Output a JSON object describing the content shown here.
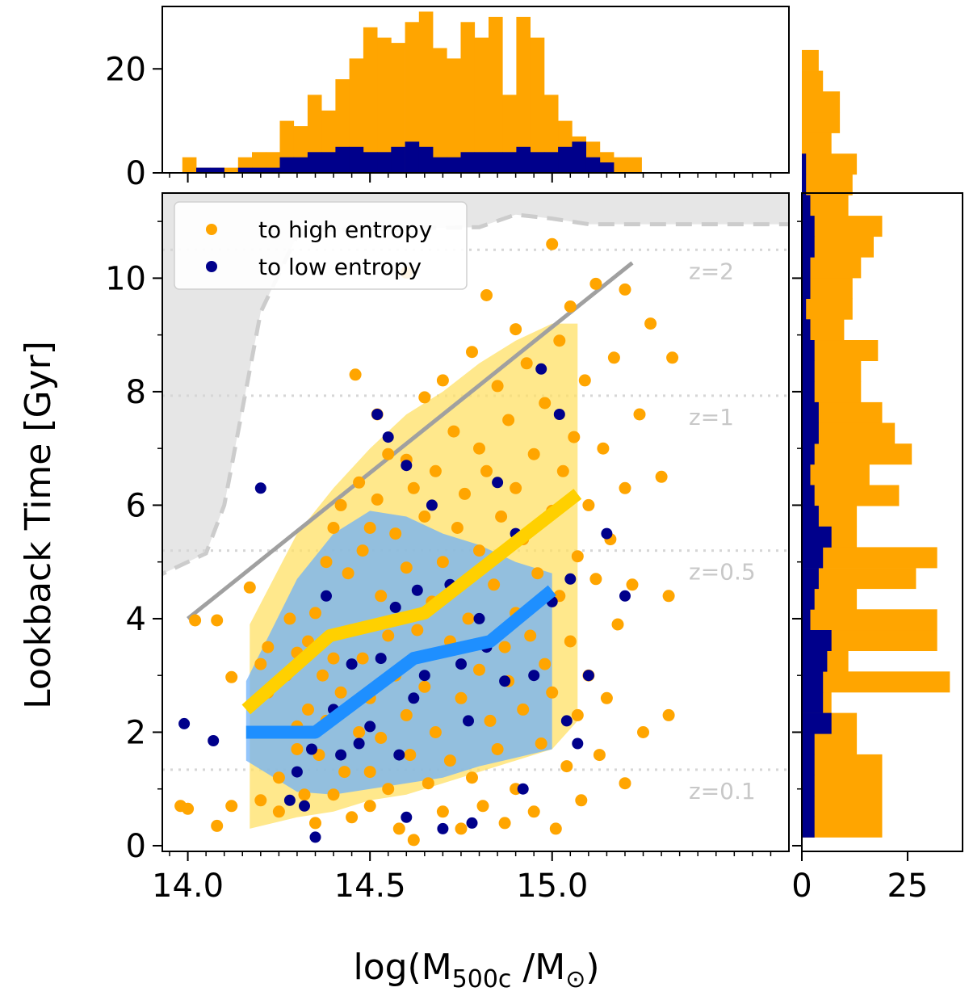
{
  "chart_data": [
    {
      "id": "main",
      "type": "scatter",
      "xlabel": "log(M",
      "xlabel_sub": "500c",
      "xlabel_tail": " /M",
      "xlabel_sun": "⊙",
      "xlabel_close": ")",
      "ylabel": "Lookback Time [Gyr]",
      "xlim": [
        13.93,
        15.65
      ],
      "ylim": [
        -0.1,
        11.5
      ],
      "xticks": [
        {
          "value": 14.0,
          "label": "14.0"
        },
        {
          "value": 14.5,
          "label": "14.5"
        },
        {
          "value": 15.0,
          "label": "15.0"
        }
      ],
      "yticks": [
        {
          "value": 0,
          "label": "0"
        },
        {
          "value": 2,
          "label": "2"
        },
        {
          "value": 4,
          "label": "4"
        },
        {
          "value": 6,
          "label": "6"
        },
        {
          "value": 8,
          "label": "8"
        },
        {
          "value": 10,
          "label": "10"
        }
      ],
      "legend": {
        "position": "top-left",
        "entries": [
          {
            "label": "to high entropy",
            "color": "#FFA500"
          },
          {
            "label": "to low entropy",
            "color": "#00008B"
          }
        ]
      },
      "redshift_lines": [
        {
          "label": "z=2",
          "y": 10.5
        },
        {
          "label": "z=1",
          "y": 7.93
        },
        {
          "label": "z=0.5",
          "y": 5.2
        },
        {
          "label": "z=0.1",
          "y": 1.34
        }
      ],
      "gray_line": {
        "x": [
          14.0,
          15.22
        ],
        "y": [
          4.0,
          10.27
        ]
      },
      "dashed_boundary": {
        "x": [
          13.9,
          14.05,
          14.1,
          14.2,
          14.3,
          14.35,
          14.8,
          14.9,
          15.0,
          15.1,
          15.3,
          15.65
        ],
        "y": [
          4.7,
          5.15,
          6.0,
          9.4,
          10.75,
          10.85,
          10.9,
          11.12,
          11.05,
          10.95,
          10.95,
          10.95
        ]
      },
      "yellow_band": {
        "x": [
          14.17,
          14.3,
          14.4,
          14.5,
          14.6,
          14.7,
          14.8,
          14.9,
          15.0,
          15.07
        ],
        "upper": [
          3.9,
          5.5,
          6.3,
          7.0,
          7.6,
          8.0,
          8.5,
          8.9,
          9.2,
          9.2
        ],
        "lower": [
          0.3,
          0.5,
          0.6,
          0.8,
          0.9,
          1.1,
          1.3,
          1.5,
          1.7,
          2.2
        ]
      },
      "blue_band": {
        "x": [
          14.16,
          14.3,
          14.4,
          14.5,
          14.6,
          14.7,
          14.8,
          14.9,
          15.0
        ],
        "upper": [
          2.9,
          4.7,
          5.5,
          5.9,
          5.8,
          5.5,
          5.3,
          5.0,
          4.8
        ],
        "lower": [
          1.5,
          0.95,
          0.9,
          1.0,
          1.1,
          1.2,
          1.4,
          1.55,
          1.7
        ]
      },
      "median_high": {
        "x": [
          14.16,
          14.39,
          14.65,
          14.89,
          15.07
        ],
        "y": [
          2.4,
          3.7,
          4.1,
          5.3,
          6.2
        ]
      },
      "median_low": {
        "x": [
          14.16,
          14.35,
          14.62,
          14.83,
          15.0
        ],
        "y": [
          2.0,
          2.0,
          3.3,
          3.6,
          4.5
        ]
      },
      "high_entropy_points": [
        [
          13.98,
          0.7
        ],
        [
          14.0,
          0.65
        ],
        [
          14.02,
          3.97
        ],
        [
          14.08,
          0.35
        ],
        [
          14.08,
          3.97
        ],
        [
          14.12,
          2.97
        ],
        [
          14.12,
          0.7
        ],
        [
          14.17,
          4.55
        ],
        [
          14.2,
          0.8
        ],
        [
          14.2,
          3.2
        ],
        [
          14.22,
          3.5
        ],
        [
          14.22,
          2.7
        ],
        [
          14.25,
          0.6
        ],
        [
          14.25,
          1.2
        ],
        [
          14.27,
          3.0
        ],
        [
          14.28,
          4.0
        ],
        [
          14.3,
          3.4
        ],
        [
          14.3,
          2.1
        ],
        [
          14.3,
          1.7
        ],
        [
          14.32,
          0.9
        ],
        [
          14.33,
          3.6
        ],
        [
          14.33,
          2.4
        ],
        [
          14.35,
          4.1
        ],
        [
          14.35,
          0.4
        ],
        [
          14.36,
          1.6
        ],
        [
          14.37,
          3.0
        ],
        [
          14.38,
          5.0
        ],
        [
          14.38,
          2.2
        ],
        [
          14.4,
          5.6
        ],
        [
          14.4,
          3.3
        ],
        [
          14.4,
          0.9
        ],
        [
          14.42,
          6.0
        ],
        [
          14.42,
          2.7
        ],
        [
          14.43,
          1.3
        ],
        [
          14.44,
          4.8
        ],
        [
          14.45,
          3.8
        ],
        [
          14.45,
          0.5
        ],
        [
          14.46,
          8.3
        ],
        [
          14.47,
          6.4
        ],
        [
          14.47,
          2.0
        ],
        [
          14.48,
          5.2
        ],
        [
          14.48,
          3.3
        ],
        [
          14.5,
          5.6
        ],
        [
          14.5,
          2.6
        ],
        [
          14.5,
          1.3
        ],
        [
          14.5,
          0.7
        ],
        [
          14.52,
          7.6
        ],
        [
          14.52,
          6.1
        ],
        [
          14.53,
          4.4
        ],
        [
          14.53,
          1.9
        ],
        [
          14.55,
          6.9
        ],
        [
          14.55,
          3.7
        ],
        [
          14.55,
          1.0
        ],
        [
          14.57,
          5.5
        ],
        [
          14.57,
          3.0
        ],
        [
          14.58,
          0.3
        ],
        [
          14.6,
          10.1
        ],
        [
          14.6,
          6.8
        ],
        [
          14.6,
          4.9
        ],
        [
          14.6,
          2.3
        ],
        [
          14.61,
          1.6
        ],
        [
          14.62,
          6.3
        ],
        [
          14.62,
          0.1
        ],
        [
          14.63,
          3.8
        ],
        [
          14.65,
          7.9
        ],
        [
          14.65,
          5.8
        ],
        [
          14.65,
          2.8
        ],
        [
          14.66,
          1.1
        ],
        [
          14.67,
          4.3
        ],
        [
          14.68,
          6.6
        ],
        [
          14.68,
          2.0
        ],
        [
          14.7,
          8.2
        ],
        [
          14.7,
          5.0
        ],
        [
          14.7,
          0.6
        ],
        [
          14.72,
          3.6
        ],
        [
          14.72,
          1.5
        ],
        [
          14.73,
          7.3
        ],
        [
          14.74,
          5.6
        ],
        [
          14.75,
          2.6
        ],
        [
          14.75,
          0.3
        ],
        [
          14.76,
          6.2
        ],
        [
          14.77,
          4.0
        ],
        [
          14.78,
          8.7
        ],
        [
          14.78,
          1.2
        ],
        [
          14.8,
          7.0
        ],
        [
          14.8,
          5.2
        ],
        [
          14.8,
          3.1
        ],
        [
          14.81,
          0.7
        ],
        [
          14.82,
          9.7
        ],
        [
          14.82,
          6.6
        ],
        [
          14.83,
          2.2
        ],
        [
          14.84,
          4.6
        ],
        [
          14.85,
          8.1
        ],
        [
          14.85,
          1.7
        ],
        [
          14.86,
          5.8
        ],
        [
          14.87,
          3.5
        ],
        [
          14.87,
          0.4
        ],
        [
          14.88,
          7.5
        ],
        [
          14.88,
          2.9
        ],
        [
          14.9,
          9.1
        ],
        [
          14.9,
          6.3
        ],
        [
          14.9,
          4.1
        ],
        [
          14.9,
          1.0
        ],
        [
          14.92,
          5.4
        ],
        [
          14.92,
          2.4
        ],
        [
          14.93,
          8.5
        ],
        [
          14.94,
          3.7
        ],
        [
          14.95,
          6.9
        ],
        [
          14.95,
          0.6
        ],
        [
          14.96,
          4.8
        ],
        [
          14.97,
          1.8
        ],
        [
          14.98,
          7.8
        ],
        [
          14.98,
          3.2
        ],
        [
          15.0,
          10.6
        ],
        [
          15.0,
          5.9
        ],
        [
          15.0,
          2.7
        ],
        [
          15.01,
          0.3
        ],
        [
          15.02,
          8.9
        ],
        [
          15.02,
          4.4
        ],
        [
          15.03,
          6.6
        ],
        [
          15.04,
          1.4
        ],
        [
          15.05,
          9.5
        ],
        [
          15.05,
          3.6
        ],
        [
          15.06,
          7.2
        ],
        [
          15.07,
          5.1
        ],
        [
          15.07,
          2.3
        ],
        [
          15.08,
          0.8
        ],
        [
          15.09,
          8.2
        ],
        [
          15.1,
          6.0
        ],
        [
          15.1,
          3.0
        ],
        [
          15.12,
          9.9
        ],
        [
          15.12,
          4.7
        ],
        [
          15.13,
          1.6
        ],
        [
          15.14,
          7.0
        ],
        [
          15.15,
          2.6
        ],
        [
          15.16,
          5.4
        ],
        [
          15.17,
          8.6
        ],
        [
          15.18,
          3.9
        ],
        [
          15.2,
          9.8
        ],
        [
          15.2,
          6.3
        ],
        [
          15.2,
          1.1
        ],
        [
          15.22,
          4.6
        ],
        [
          15.24,
          7.6
        ],
        [
          15.25,
          2.0
        ],
        [
          15.27,
          9.2
        ],
        [
          15.3,
          6.5
        ],
        [
          15.32,
          4.4
        ],
        [
          15.32,
          2.3
        ],
        [
          15.33,
          8.6
        ]
      ],
      "low_entropy_points": [
        [
          13.99,
          2.15
        ],
        [
          14.07,
          1.85
        ],
        [
          14.2,
          6.3
        ],
        [
          14.28,
          0.8
        ],
        [
          14.3,
          1.3
        ],
        [
          14.32,
          0.7
        ],
        [
          14.34,
          1.7
        ],
        [
          14.35,
          0.15
        ],
        [
          14.38,
          4.4
        ],
        [
          14.4,
          2.4
        ],
        [
          14.42,
          1.6
        ],
        [
          14.45,
          3.2
        ],
        [
          14.47,
          1.8
        ],
        [
          14.5,
          2.1
        ],
        [
          14.52,
          7.6
        ],
        [
          14.53,
          3.3
        ],
        [
          14.55,
          7.2
        ],
        [
          14.57,
          4.2
        ],
        [
          14.58,
          1.6
        ],
        [
          14.6,
          6.7
        ],
        [
          14.6,
          0.5
        ],
        [
          14.62,
          2.6
        ],
        [
          14.63,
          4.5
        ],
        [
          14.65,
          3.0
        ],
        [
          14.67,
          6.0
        ],
        [
          14.7,
          0.3
        ],
        [
          14.72,
          4.6
        ],
        [
          14.75,
          3.2
        ],
        [
          14.77,
          2.2
        ],
        [
          14.78,
          0.4
        ],
        [
          14.8,
          4.0
        ],
        [
          14.82,
          3.5
        ],
        [
          14.85,
          6.4
        ],
        [
          14.87,
          2.9
        ],
        [
          14.9,
          5.5
        ],
        [
          14.92,
          1.0
        ],
        [
          14.95,
          3.0
        ],
        [
          14.97,
          8.4
        ],
        [
          15.0,
          4.3
        ],
        [
          15.02,
          7.6
        ],
        [
          15.04,
          2.2
        ],
        [
          15.05,
          4.7
        ],
        [
          15.07,
          1.8
        ],
        [
          15.1,
          3.0
        ],
        [
          15.15,
          5.5
        ],
        [
          15.2,
          4.4
        ]
      ]
    },
    {
      "id": "top",
      "type": "bar",
      "xlim": [
        13.93,
        15.65
      ],
      "ylim": [
        0,
        32
      ],
      "yticks": [
        {
          "value": 0,
          "label": "0"
        },
        {
          "value": 20,
          "label": "20"
        }
      ],
      "bin_start": 13.985,
      "bin_width": 0.0382,
      "series": [
        {
          "name": "to high entropy",
          "color": "#FFA500",
          "values": [
            3,
            1,
            1,
            1,
            3,
            4,
            4,
            10,
            9,
            15,
            12,
            18,
            22,
            28,
            26,
            25,
            29,
            31,
            24,
            22,
            29,
            26,
            30,
            15,
            30,
            26,
            15,
            10,
            7,
            6,
            4,
            3,
            3
          ]
        },
        {
          "name": "to low entropy",
          "color": "#00008B",
          "values": [
            0,
            1,
            1,
            0,
            1,
            1,
            1,
            3,
            3,
            4,
            4,
            5,
            5,
            4,
            4,
            5,
            6,
            5,
            3,
            3,
            4,
            4,
            4,
            4,
            5,
            4,
            4,
            5,
            6,
            3,
            2,
            0,
            0
          ]
        }
      ]
    },
    {
      "id": "right",
      "type": "bar",
      "orientation": "horizontal",
      "xlim": [
        0,
        38
      ],
      "xticks": [
        {
          "value": 0,
          "label": "0"
        },
        {
          "value": 25,
          "label": "25"
        }
      ],
      "bin_start": 0.15,
      "bin_width": 0.365,
      "series": [
        {
          "name": "to high entropy",
          "color": "#FFA500",
          "values": [
            19,
            19,
            19,
            19,
            13,
            13,
            7,
            35,
            11,
            32,
            32,
            13,
            27,
            32,
            13,
            13,
            23,
            16,
            26,
            22,
            19,
            14,
            14,
            18,
            10,
            12,
            12,
            14,
            17,
            19,
            11,
            12,
            13,
            7,
            9,
            9,
            5,
            4
          ]
        },
        {
          "name": "to low entropy",
          "color": "#00008B",
          "values": [
            3,
            3,
            3,
            3,
            3,
            7,
            5,
            5,
            6,
            7,
            2,
            3,
            4,
            5,
            7,
            4,
            3,
            2,
            3,
            4,
            4,
            3,
            3,
            3,
            2,
            1,
            2,
            2,
            3,
            3,
            2,
            1,
            1,
            0,
            0,
            0,
            0,
            0
          ]
        }
      ]
    }
  ]
}
